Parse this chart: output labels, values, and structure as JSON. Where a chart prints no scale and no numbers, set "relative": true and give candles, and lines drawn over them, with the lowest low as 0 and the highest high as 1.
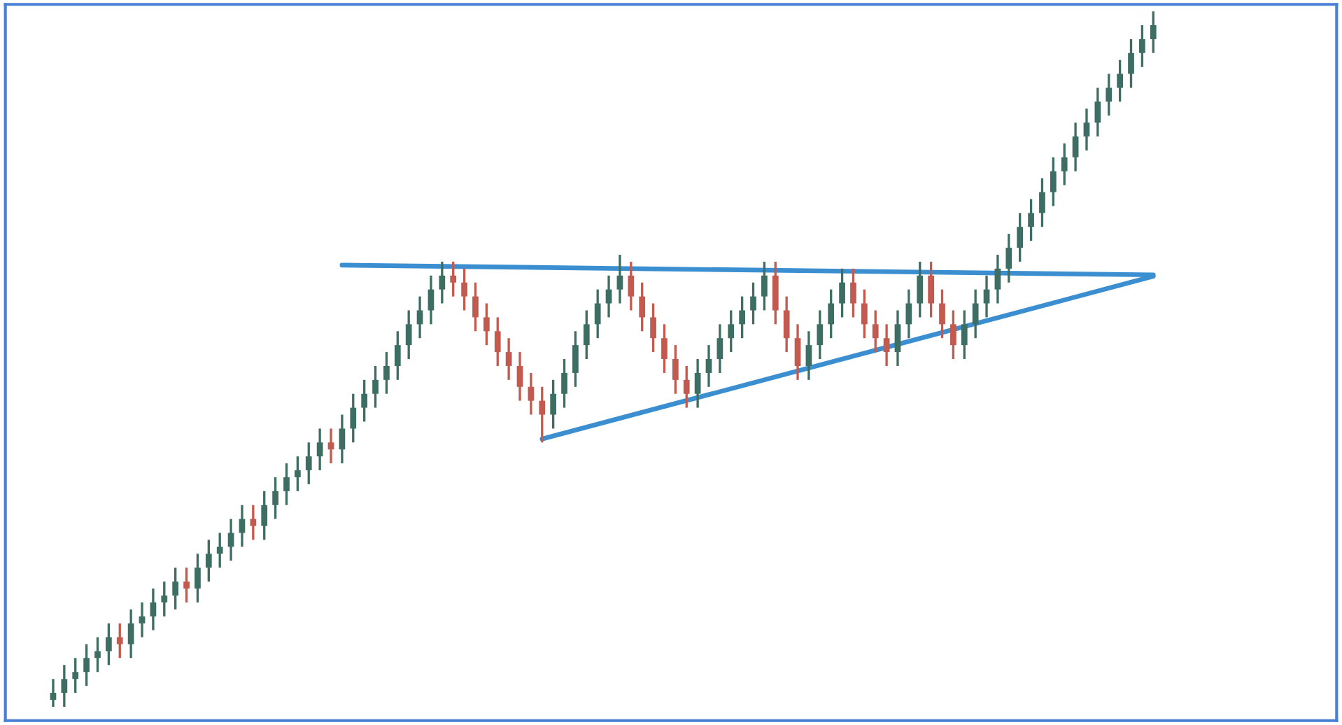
{
  "chart_data": {
    "type": "candlestick",
    "relative": true,
    "colors": [
      "#3e6e63",
      "#3e6e63",
      "#3e6e63",
      "#3e6e63",
      "#3e6e63",
      "#3e6e63",
      "#c25a4f",
      "#3e6e63",
      "#3e6e63",
      "#3e6e63",
      "#3e6e63",
      "#3e6e63",
      "#c25a4f",
      "#3e6e63",
      "#3e6e63",
      "#3e6e63",
      "#3e6e63",
      "#3e6e63",
      "#c25a4f",
      "#3e6e63",
      "#3e6e63",
      "#3e6e63",
      "#3e6e63",
      "#3e6e63",
      "#3e6e63",
      "#c25a4f",
      "#3e6e63",
      "#3e6e63",
      "#3e6e63",
      "#3e6e63",
      "#3e6e63",
      "#3e6e63",
      "#3e6e63",
      "#3e6e63",
      "#3e6e63",
      "#3e6e63",
      "#c25a4f",
      "#c25a4f",
      "#c25a4f",
      "#c25a4f",
      "#c25a4f",
      "#c25a4f",
      "#c25a4f",
      "#c25a4f",
      "#c25a4f",
      "#3e6e63",
      "#3e6e63",
      "#3e6e63",
      "#3e6e63",
      "#3e6e63",
      "#3e6e63",
      "#3e6e63",
      "#c25a4f",
      "#c25a4f",
      "#c25a4f",
      "#c25a4f",
      "#c25a4f",
      "#c25a4f",
      "#3e6e63",
      "#3e6e63",
      "#3e6e63",
      "#3e6e63",
      "#3e6e63",
      "#3e6e63",
      "#3e6e63",
      "#c25a4f",
      "#c25a4f",
      "#c25a4f",
      "#3e6e63",
      "#3e6e63",
      "#3e6e63",
      "#3e6e63",
      "#c25a4f",
      "#c25a4f",
      "#c25a4f",
      "#c25a4f",
      "#3e6e63",
      "#3e6e63",
      "#3e6e63",
      "#c25a4f",
      "#c25a4f",
      "#c25a4f",
      "#3e6e63",
      "#3e6e63",
      "#3e6e63",
      "#3e6e63",
      "#3e6e63",
      "#3e6e63",
      "#3e6e63",
      "#3e6e63",
      "#3e6e63",
      "#3e6e63",
      "#3e6e63",
      "#3e6e63",
      "#3e6e63",
      "#3e6e63",
      "#3e6e63",
      "#3e6e63",
      "#3e6e63",
      "#3e6e63"
    ],
    "categories": [
      null,
      null,
      null,
      null,
      null,
      null,
      null,
      null,
      null,
      null,
      null,
      null,
      null,
      null,
      null,
      null,
      null,
      null,
      null,
      null,
      null,
      null,
      null,
      null,
      null,
      null,
      null,
      null,
      null,
      null,
      null,
      null,
      null,
      null,
      null,
      null,
      null,
      null,
      null,
      null,
      null,
      null,
      null,
      null,
      null,
      null,
      null,
      null,
      null,
      null,
      null,
      null,
      null,
      null,
      null,
      null,
      null,
      null,
      null,
      null,
      null,
      null,
      null,
      null,
      null,
      null,
      null,
      null,
      null,
      null,
      null,
      null,
      null,
      null,
      null,
      null,
      null,
      null,
      null,
      null,
      null,
      null,
      null,
      null,
      null,
      null,
      null,
      null,
      null,
      null,
      null,
      null,
      null,
      null,
      null,
      null,
      null,
      null,
      null,
      null
    ],
    "ohlc": [
      [
        0.01,
        0.04,
        0.0,
        0.02
      ],
      [
        0.02,
        0.06,
        0.0,
        0.04
      ],
      [
        0.04,
        0.07,
        0.02,
        0.05
      ],
      [
        0.05,
        0.09,
        0.03,
        0.07
      ],
      [
        0.07,
        0.1,
        0.05,
        0.08
      ],
      [
        0.08,
        0.12,
        0.06,
        0.1
      ],
      [
        0.1,
        0.12,
        0.07,
        0.09
      ],
      [
        0.09,
        0.14,
        0.07,
        0.12
      ],
      [
        0.12,
        0.15,
        0.1,
        0.13
      ],
      [
        0.13,
        0.17,
        0.11,
        0.15
      ],
      [
        0.15,
        0.18,
        0.13,
        0.16
      ],
      [
        0.16,
        0.2,
        0.14,
        0.18
      ],
      [
        0.18,
        0.2,
        0.15,
        0.17
      ],
      [
        0.17,
        0.22,
        0.15,
        0.2
      ],
      [
        0.2,
        0.24,
        0.18,
        0.22
      ],
      [
        0.22,
        0.25,
        0.2,
        0.23
      ],
      [
        0.23,
        0.27,
        0.21,
        0.25
      ],
      [
        0.25,
        0.29,
        0.23,
        0.27
      ],
      [
        0.27,
        0.29,
        0.24,
        0.26
      ],
      [
        0.26,
        0.31,
        0.24,
        0.29
      ],
      [
        0.29,
        0.33,
        0.27,
        0.31
      ],
      [
        0.31,
        0.35,
        0.29,
        0.33
      ],
      [
        0.33,
        0.36,
        0.31,
        0.34
      ],
      [
        0.34,
        0.38,
        0.32,
        0.36
      ],
      [
        0.36,
        0.4,
        0.34,
        0.38
      ],
      [
        0.38,
        0.4,
        0.35,
        0.37
      ],
      [
        0.37,
        0.42,
        0.35,
        0.4
      ],
      [
        0.4,
        0.45,
        0.38,
        0.43
      ],
      [
        0.43,
        0.47,
        0.41,
        0.45
      ],
      [
        0.45,
        0.49,
        0.43,
        0.47
      ],
      [
        0.47,
        0.51,
        0.45,
        0.49
      ],
      [
        0.49,
        0.54,
        0.47,
        0.52
      ],
      [
        0.52,
        0.57,
        0.5,
        0.55
      ],
      [
        0.55,
        0.59,
        0.53,
        0.57
      ],
      [
        0.57,
        0.62,
        0.55,
        0.6
      ],
      [
        0.6,
        0.64,
        0.58,
        0.62
      ],
      [
        0.62,
        0.64,
        0.59,
        0.61
      ],
      [
        0.61,
        0.63,
        0.57,
        0.59
      ],
      [
        0.59,
        0.61,
        0.54,
        0.56
      ],
      [
        0.56,
        0.58,
        0.52,
        0.54
      ],
      [
        0.54,
        0.56,
        0.49,
        0.51
      ],
      [
        0.51,
        0.53,
        0.47,
        0.49
      ],
      [
        0.49,
        0.51,
        0.44,
        0.46
      ],
      [
        0.46,
        0.48,
        0.42,
        0.44
      ],
      [
        0.44,
        0.46,
        0.38,
        0.42
      ],
      [
        0.42,
        0.47,
        0.4,
        0.45
      ],
      [
        0.45,
        0.5,
        0.43,
        0.48
      ],
      [
        0.48,
        0.54,
        0.46,
        0.52
      ],
      [
        0.52,
        0.57,
        0.5,
        0.55
      ],
      [
        0.55,
        0.6,
        0.53,
        0.58
      ],
      [
        0.58,
        0.62,
        0.56,
        0.6
      ],
      [
        0.6,
        0.65,
        0.58,
        0.62
      ],
      [
        0.62,
        0.64,
        0.57,
        0.59
      ],
      [
        0.59,
        0.61,
        0.54,
        0.56
      ],
      [
        0.56,
        0.58,
        0.51,
        0.53
      ],
      [
        0.53,
        0.55,
        0.48,
        0.5
      ],
      [
        0.5,
        0.52,
        0.45,
        0.47
      ],
      [
        0.47,
        0.49,
        0.43,
        0.45
      ],
      [
        0.45,
        0.5,
        0.43,
        0.48
      ],
      [
        0.48,
        0.52,
        0.46,
        0.5
      ],
      [
        0.5,
        0.55,
        0.48,
        0.53
      ],
      [
        0.53,
        0.57,
        0.51,
        0.55
      ],
      [
        0.55,
        0.59,
        0.53,
        0.57
      ],
      [
        0.57,
        0.61,
        0.55,
        0.59
      ],
      [
        0.59,
        0.64,
        0.57,
        0.62
      ],
      [
        0.62,
        0.64,
        0.55,
        0.57
      ],
      [
        0.57,
        0.59,
        0.51,
        0.53
      ],
      [
        0.53,
        0.55,
        0.47,
        0.49
      ],
      [
        0.49,
        0.54,
        0.47,
        0.52
      ],
      [
        0.52,
        0.57,
        0.5,
        0.55
      ],
      [
        0.55,
        0.6,
        0.53,
        0.58
      ],
      [
        0.58,
        0.63,
        0.56,
        0.61
      ],
      [
        0.61,
        0.63,
        0.56,
        0.58
      ],
      [
        0.58,
        0.6,
        0.53,
        0.55
      ],
      [
        0.55,
        0.57,
        0.51,
        0.53
      ],
      [
        0.53,
        0.55,
        0.49,
        0.51
      ],
      [
        0.51,
        0.57,
        0.49,
        0.55
      ],
      [
        0.55,
        0.6,
        0.53,
        0.58
      ],
      [
        0.58,
        0.64,
        0.56,
        0.62
      ],
      [
        0.62,
        0.64,
        0.56,
        0.58
      ],
      [
        0.58,
        0.6,
        0.53,
        0.55
      ],
      [
        0.55,
        0.57,
        0.5,
        0.52
      ],
      [
        0.52,
        0.57,
        0.5,
        0.55
      ],
      [
        0.55,
        0.6,
        0.53,
        0.58
      ],
      [
        0.58,
        0.62,
        0.56,
        0.6
      ],
      [
        0.6,
        0.65,
        0.58,
        0.63
      ],
      [
        0.63,
        0.68,
        0.61,
        0.66
      ],
      [
        0.66,
        0.71,
        0.64,
        0.69
      ],
      [
        0.69,
        0.73,
        0.67,
        0.71
      ],
      [
        0.71,
        0.76,
        0.69,
        0.74
      ],
      [
        0.74,
        0.79,
        0.72,
        0.77
      ],
      [
        0.77,
        0.81,
        0.75,
        0.79
      ],
      [
        0.79,
        0.84,
        0.77,
        0.82
      ],
      [
        0.82,
        0.86,
        0.8,
        0.84
      ],
      [
        0.84,
        0.89,
        0.82,
        0.87
      ],
      [
        0.87,
        0.91,
        0.85,
        0.89
      ],
      [
        0.89,
        0.93,
        0.87,
        0.91
      ],
      [
        0.91,
        0.96,
        0.89,
        0.94
      ],
      [
        0.94,
        0.98,
        0.92,
        0.96
      ],
      [
        0.96,
        1.0,
        0.94,
        0.98
      ]
    ],
    "series": [
      {
        "type": "line",
        "color": "#3b8fd1",
        "values": [
          null,
          null,
          null,
          null,
          null,
          null,
          null,
          null,
          null,
          null,
          null,
          null,
          null,
          null,
          null,
          null,
          null,
          null,
          null,
          null,
          null,
          null,
          null,
          null,
          null,
          null,
          0.635,
          null,
          null,
          null,
          null,
          null,
          null,
          null,
          null,
          null,
          null,
          null,
          null,
          null,
          null,
          null,
          null,
          null,
          null,
          null,
          null,
          null,
          null,
          null,
          null,
          null,
          null,
          null,
          null,
          null,
          null,
          null,
          null,
          null,
          null,
          null,
          null,
          null,
          null,
          null,
          null,
          null,
          null,
          null,
          null,
          null,
          null,
          null,
          null,
          null,
          null,
          null,
          null,
          null,
          null,
          null,
          null,
          null,
          null,
          null,
          null,
          null,
          null,
          null,
          null,
          null,
          null,
          null,
          null,
          null,
          null,
          null,
          null,
          0.621
        ]
      },
      {
        "type": "line",
        "color": "#3b8fd1",
        "values": [
          null,
          null,
          null,
          null,
          null,
          null,
          null,
          null,
          null,
          null,
          null,
          null,
          null,
          null,
          null,
          null,
          null,
          null,
          null,
          null,
          null,
          null,
          null,
          null,
          null,
          null,
          null,
          null,
          null,
          null,
          null,
          null,
          null,
          null,
          null,
          null,
          null,
          null,
          null,
          null,
          null,
          null,
          null,
          null,
          0.385,
          null,
          null,
          null,
          null,
          null,
          null,
          null,
          null,
          null,
          null,
          null,
          null,
          null,
          null,
          null,
          null,
          null,
          null,
          null,
          null,
          null,
          null,
          null,
          null,
          null,
          null,
          null,
          null,
          null,
          null,
          null,
          null,
          null,
          null,
          null,
          null,
          null,
          null,
          null,
          null,
          null,
          null,
          null,
          null,
          null,
          null,
          null,
          null,
          null,
          null,
          null,
          null,
          null,
          null,
          0.619
        ]
      }
    ]
  }
}
